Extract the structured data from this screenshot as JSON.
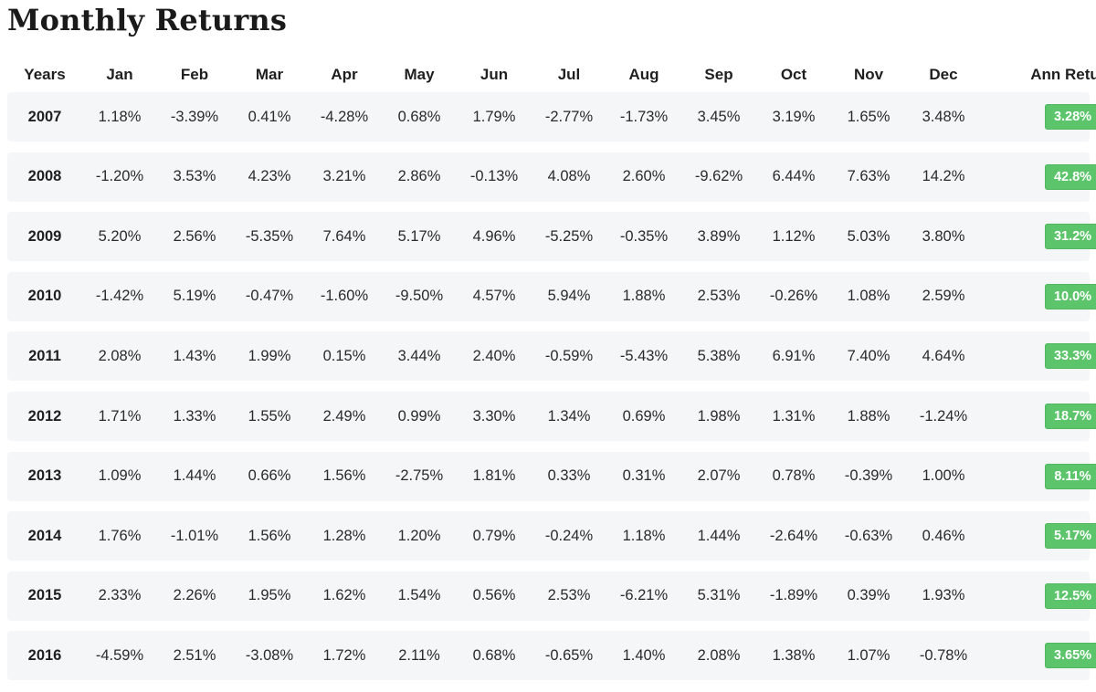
{
  "page": {
    "title": "Monthly Returns"
  },
  "table": {
    "headers": [
      "Years",
      "Jan",
      "Feb",
      "Mar",
      "Apr",
      "May",
      "Jun",
      "Jul",
      "Aug",
      "Sep",
      "Oct",
      "Nov",
      "Dec",
      "Ann Return"
    ],
    "rows": [
      {
        "year": "2007",
        "months": [
          "1.18%",
          "-3.39%",
          "0.41%",
          "-4.28%",
          "0.68%",
          "1.79%",
          "-2.77%",
          "-1.73%",
          "3.45%",
          "3.19%",
          "1.65%",
          "3.48%"
        ],
        "annual": "3.28%"
      },
      {
        "year": "2008",
        "months": [
          "-1.20%",
          "3.53%",
          "4.23%",
          "3.21%",
          "2.86%",
          "-0.13%",
          "4.08%",
          "2.60%",
          "-9.62%",
          "6.44%",
          "7.63%",
          "14.2%"
        ],
        "annual": "42.8%"
      },
      {
        "year": "2009",
        "months": [
          "5.20%",
          "2.56%",
          "-5.35%",
          "7.64%",
          "5.17%",
          "4.96%",
          "-5.25%",
          "-0.35%",
          "3.89%",
          "1.12%",
          "5.03%",
          "3.80%"
        ],
        "annual": "31.2%"
      },
      {
        "year": "2010",
        "months": [
          "-1.42%",
          "5.19%",
          "-0.47%",
          "-1.60%",
          "-9.50%",
          "4.57%",
          "5.94%",
          "1.88%",
          "2.53%",
          "-0.26%",
          "1.08%",
          "2.59%"
        ],
        "annual": "10.0%"
      },
      {
        "year": "2011",
        "months": [
          "2.08%",
          "1.43%",
          "1.99%",
          "0.15%",
          "3.44%",
          "2.40%",
          "-0.59%",
          "-5.43%",
          "5.38%",
          "6.91%",
          "7.40%",
          "4.64%"
        ],
        "annual": "33.3%"
      },
      {
        "year": "2012",
        "months": [
          "1.71%",
          "1.33%",
          "1.55%",
          "2.49%",
          "0.99%",
          "3.30%",
          "1.34%",
          "0.69%",
          "1.98%",
          "1.31%",
          "1.88%",
          "-1.24%"
        ],
        "annual": "18.7%"
      },
      {
        "year": "2013",
        "months": [
          "1.09%",
          "1.44%",
          "0.66%",
          "1.56%",
          "-2.75%",
          "1.81%",
          "0.33%",
          "0.31%",
          "2.07%",
          "0.78%",
          "-0.39%",
          "1.00%"
        ],
        "annual": "8.11%"
      },
      {
        "year": "2014",
        "months": [
          "1.76%",
          "-1.01%",
          "1.56%",
          "1.28%",
          "1.20%",
          "0.79%",
          "-0.24%",
          "1.18%",
          "1.44%",
          "-2.64%",
          "-0.63%",
          "0.46%"
        ],
        "annual": "5.17%"
      },
      {
        "year": "2015",
        "months": [
          "2.33%",
          "2.26%",
          "1.95%",
          "1.62%",
          "1.54%",
          "0.56%",
          "2.53%",
          "-6.21%",
          "5.31%",
          "-1.89%",
          "0.39%",
          "1.93%"
        ],
        "annual": "12.5%"
      },
      {
        "year": "2016",
        "months": [
          "-4.59%",
          "2.51%",
          "-3.08%",
          "1.72%",
          "2.11%",
          "0.68%",
          "-0.65%",
          "1.40%",
          "2.08%",
          "1.38%",
          "1.07%",
          "-0.78%"
        ],
        "annual": "3.65%"
      }
    ]
  },
  "colors": {
    "badge_positive": "#5cc56b",
    "row_background": "#f5f6f8"
  }
}
